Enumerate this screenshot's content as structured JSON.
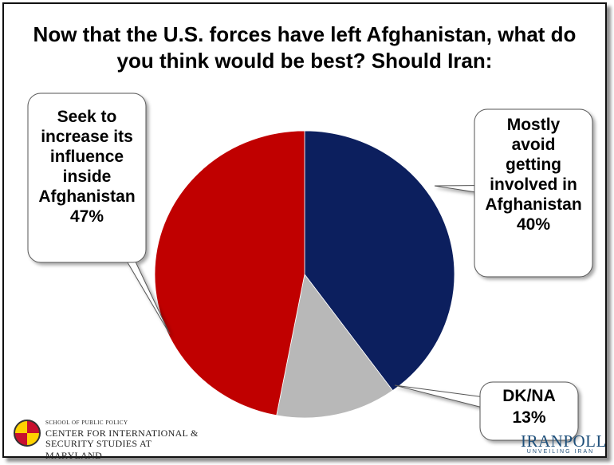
{
  "title_lines": [
    "Now that the U.S. forces have left Afghanistan, what do",
    "you think would be best? Should Iran:"
  ],
  "chart_data": {
    "type": "pie",
    "title": "Now that the U.S. forces have left Afghanistan, what do you think would be best? Should Iran:",
    "slices": [
      {
        "label_lines": [
          "Mostly",
          "avoid",
          "getting",
          "involved in",
          "Afghanistan"
        ],
        "value": 40,
        "value_label": "40%",
        "color": "#0c1f5e"
      },
      {
        "label_lines": [
          "DK/NA"
        ],
        "value": 13,
        "value_label": "13%",
        "color": "#b8b8b8"
      },
      {
        "label_lines": [
          "Seek to",
          "increase its",
          "influence",
          "inside",
          "Afghanistan"
        ],
        "value": 47,
        "value_label": "47%",
        "color": "#c00000"
      }
    ]
  },
  "logos": {
    "left": {
      "small_text": "SCHOOL OF PUBLIC POLICY",
      "line1": "CENTER FOR INTERNATIONAL &",
      "line2": "SECURITY STUDIES AT MARYLAND"
    },
    "right": {
      "name": "IRANPOLL",
      "tagline": "UNVEILING IRAN"
    }
  }
}
